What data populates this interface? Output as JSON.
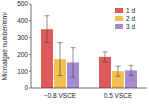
{
  "chart_data": {
    "type": "bar",
    "y_label": "Microalgae number/mm²",
    "categories": [
      "−0.8 VSCE",
      "0.5 VSCE"
    ],
    "series": [
      {
        "name": "1 d",
        "color": "#e05a5a",
        "values": [
          350,
          185
        ],
        "errors": [
          80,
          30
        ]
      },
      {
        "name": "2 d",
        "color": "#f2c14e",
        "values": [
          172,
          100
        ],
        "errors": [
          98,
          30
        ]
      },
      {
        "name": "3 d",
        "color": "#a78bd0",
        "values": [
          152,
          105
        ],
        "errors": [
          88,
          30
        ]
      }
    ],
    "ylim": [
      0,
      500
    ],
    "yticks": [
      0,
      100,
      200,
      300,
      400,
      500
    ],
    "legend": "upper right"
  }
}
